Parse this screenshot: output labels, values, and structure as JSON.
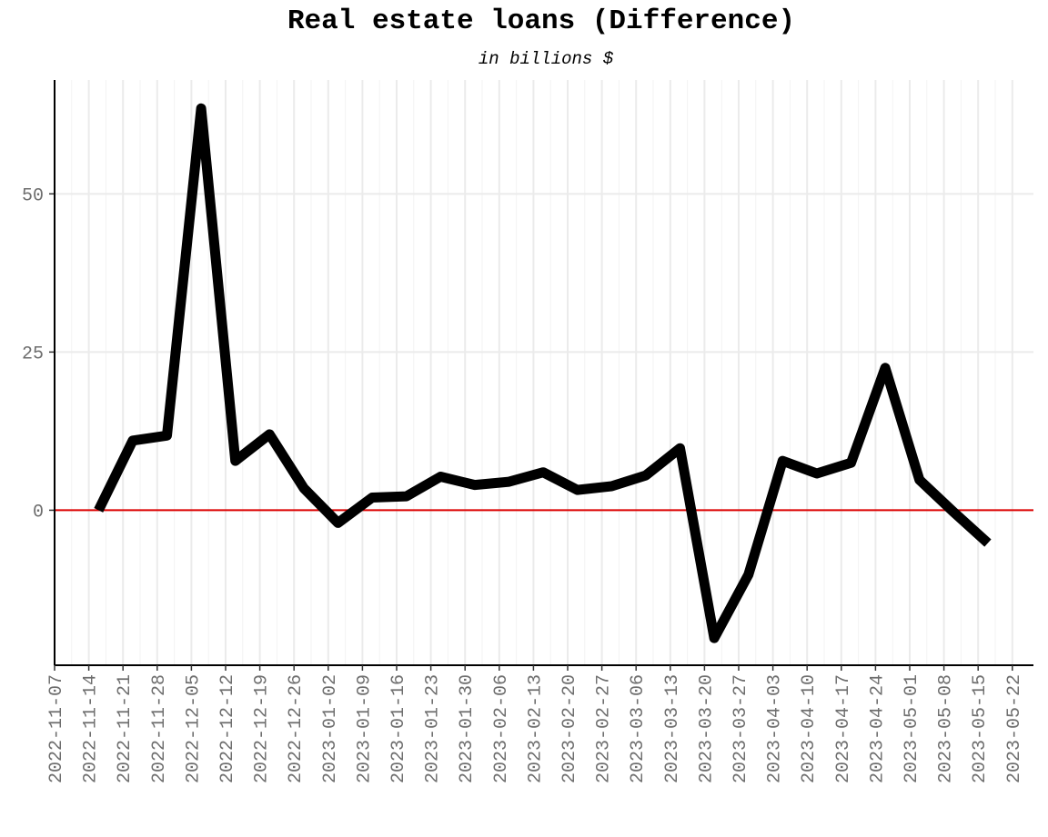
{
  "chart_data": {
    "type": "line",
    "title": "Real estate loans (Difference)",
    "subtitle": "in billions $",
    "xlabel": "",
    "ylabel": "",
    "ylim": [
      -24.5,
      68
    ],
    "yticks": [
      0,
      25,
      50
    ],
    "x_tick_labels": [
      "2022-11-07",
      "2022-11-14",
      "2022-11-21",
      "2022-11-28",
      "2022-12-05",
      "2022-12-12",
      "2022-12-19",
      "2022-12-26",
      "2023-01-02",
      "2023-01-09",
      "2023-01-16",
      "2023-01-23",
      "2023-01-30",
      "2023-02-06",
      "2023-02-13",
      "2023-02-20",
      "2023-02-27",
      "2023-03-06",
      "2023-03-13",
      "2023-03-20",
      "2023-03-27",
      "2023-04-03",
      "2023-04-10",
      "2023-04-17",
      "2023-04-24",
      "2023-05-01",
      "2023-05-08",
      "2023-05-15",
      "2023-05-22"
    ],
    "x": [
      "2022-11-16",
      "2022-11-23",
      "2022-11-30",
      "2022-12-07",
      "2022-12-14",
      "2022-12-21",
      "2022-12-28",
      "2023-01-04",
      "2023-01-11",
      "2023-01-18",
      "2023-01-25",
      "2023-02-01",
      "2023-02-08",
      "2023-02-15",
      "2023-02-22",
      "2023-03-01",
      "2023-03-08",
      "2023-03-15",
      "2023-03-22",
      "2023-03-29",
      "2023-04-05",
      "2023-04-12",
      "2023-04-19",
      "2023-04-26",
      "2023-05-03",
      "2023-05-10",
      "2023-05-17"
    ],
    "series": [
      {
        "values": [
          0,
          11,
          11.8,
          63.5,
          7.8,
          12,
          3.5,
          -2,
          2,
          2.2,
          5.3,
          4,
          4.5,
          6,
          3.2,
          3.8,
          5.5,
          9.8,
          -20.2,
          -10.2,
          7.8,
          5.8,
          7.5,
          22.5,
          4.8,
          -0.3,
          -5.2
        ],
        "color": "#000000"
      }
    ],
    "reference_line": {
      "y": 0,
      "color": "#dd0000"
    },
    "grid": true,
    "legend": "none"
  }
}
